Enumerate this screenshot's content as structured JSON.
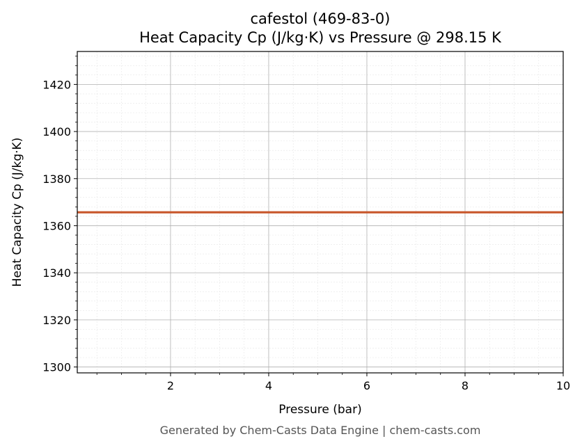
{
  "chart_data": {
    "type": "line",
    "title": "cafestol (469-83-0)",
    "subtitle": "Heat Capacity Cp (J/kg·K) vs Pressure @ 298.15 K",
    "xlabel": "Pressure (bar)",
    "ylabel": "Heat Capacity Cp (J/kg·K)",
    "xlim": [
      0.1,
      10
    ],
    "ylim": [
      1297.5,
      1434
    ],
    "x_ticks": [
      2,
      4,
      6,
      8,
      10
    ],
    "x_tick_labels": [
      "2",
      "4",
      "6",
      "8",
      "10"
    ],
    "y_ticks": [
      1300,
      1320,
      1340,
      1360,
      1380,
      1400,
      1420
    ],
    "y_tick_labels": [
      "1300",
      "1320",
      "1340",
      "1360",
      "1380",
      "1400",
      "1420"
    ],
    "grid": true,
    "minor_grid": true,
    "series": [
      {
        "color": "#c8562a",
        "x": [
          0.1,
          10
        ],
        "y": [
          1365.7,
          1365.7
        ]
      }
    ]
  },
  "footer": "Generated by Chem-Casts Data Engine | chem-casts.com"
}
